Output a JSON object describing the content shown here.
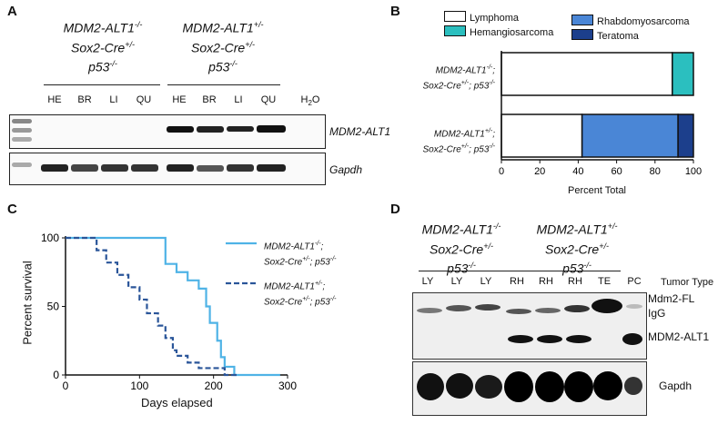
{
  "panelA": {
    "letter": "A",
    "group1": {
      "l1": "MDM2-ALT1",
      "l1sup": "-/-",
      "l2": "Sox2-Cre",
      "l2sup": "+/-",
      "l3": "p53",
      "l3sup": "-/-"
    },
    "group2": {
      "l1": "MDM2-ALT1",
      "l1sup": "+/-",
      "l2": "Sox2-Cre",
      "l2sup": "+/-",
      "l3": "p53",
      "l3sup": "-/-"
    },
    "lanes": [
      "HE",
      "BR",
      "LI",
      "QU",
      "HE",
      "BR",
      "LI",
      "QU"
    ],
    "water": "H",
    "water_sub": "2",
    "water_end": "O",
    "gel_labels": [
      "MDM2-ALT1",
      "Gapdh"
    ]
  },
  "panelB": {
    "letter": "B",
    "legend": [
      "Lymphoma",
      "Hemangiosarcoma",
      "Rhabdomyosarcoma",
      "Teratoma"
    ],
    "rows": [
      {
        "l1": "MDM2-ALT1",
        "l1sup": "-/-",
        "l1end": ";",
        "l2": "Sox2-Cre",
        "l2sup": "+/-",
        "l2mid": "; p53",
        "l2sup2": "-/-"
      },
      {
        "l1": "MDM2-ALT1",
        "l1sup": "+/-",
        "l1end": ";",
        "l2": "Sox2-Cre",
        "l2sup": "+/-",
        "l2mid": "; p53",
        "l2sup2": "-/-"
      }
    ],
    "xlabel": "Percent Total"
  },
  "panelC": {
    "letter": "C",
    "ylabel": "Percent survival",
    "xlabel": "Days elapsed",
    "legend": [
      {
        "l1": "MDM2-ALT1",
        "l1sup": "-/-",
        "l1end": ";",
        "l2": "Sox2-Cre",
        "l2sup": "+/-",
        "l2mid": "; p53",
        "l2sup2": "-/-"
      },
      {
        "l1": "MDM2-ALT1",
        "l1sup": "+/-",
        "l1end": ";",
        "l2": "Sox2-Cre",
        "l2sup": "+/-",
        "l2mid": "; p53",
        "l2sup2": "-/-"
      }
    ]
  },
  "panelD": {
    "letter": "D",
    "group1": {
      "l1": "MDM2-ALT1",
      "l1sup": "-/-",
      "l2": "Sox2-Cre",
      "l2sup": "+/-",
      "l3": "p53",
      "l3sup": "-/-"
    },
    "group2": {
      "l1": "MDM2-ALT1",
      "l1sup": "+/-",
      "l2": "Sox2-Cre",
      "l2sup": "+/-",
      "l3": "p53",
      "l3sup": "-/-"
    },
    "lanes": [
      "LY",
      "LY",
      "LY",
      "RH",
      "RH",
      "RH",
      "TE",
      "PC"
    ],
    "tumor_type": "Tumor Type",
    "blot_labels": [
      "Mdm2-FL",
      "IgG",
      "MDM2-ALT1",
      "Gapdh"
    ]
  },
  "chart_data": [
    {
      "type": "bar",
      "orientation": "horizontal",
      "stacked": true,
      "categories": [
        "MDM2-ALT1-/-; Sox2-Cre+/-; p53-/-",
        "MDM2-ALT1+/-; Sox2-Cre+/-; p53-/-"
      ],
      "series": [
        {
          "name": "Lymphoma",
          "values": [
            89,
            42
          ],
          "color": "#ffffff"
        },
        {
          "name": "Hemangiosarcoma",
          "values": [
            11,
            0
          ],
          "color": "#2bbfbf"
        },
        {
          "name": "Rhabdomyosarcoma",
          "values": [
            0,
            50
          ],
          "color": "#4a86d6"
        },
        {
          "name": "Teratoma",
          "values": [
            0,
            8
          ],
          "color": "#1c3f8c"
        }
      ],
      "xlim": [
        0,
        100
      ],
      "xticks": [
        0,
        20,
        40,
        60,
        80,
        100
      ],
      "xlabel": "Percent Total",
      "legend_position": "top"
    },
    {
      "type": "line",
      "step": true,
      "xlabel": "Days elapsed",
      "ylabel": "Percent survival",
      "xlim": [
        0,
        300
      ],
      "ylim": [
        0,
        100
      ],
      "xticks": [
        0,
        100,
        200,
        300
      ],
      "yticks": [
        0,
        50,
        100
      ],
      "series": [
        {
          "name": "MDM2-ALT1-/-; Sox2-Cre+/-; p53-/-",
          "color": "#4fb3e6",
          "dash": false,
          "x": [
            0,
            135,
            150,
            165,
            180,
            190,
            195,
            205,
            210,
            215,
            228,
            290
          ],
          "y": [
            100,
            81,
            75,
            69,
            63,
            50,
            38,
            25,
            13,
            6,
            0,
            0
          ]
        },
        {
          "name": "MDM2-ALT1+/-; Sox2-Cre+/-; p53-/-",
          "color": "#2a5599",
          "dash": true,
          "x": [
            0,
            42,
            55,
            70,
            85,
            100,
            110,
            125,
            135,
            145,
            150,
            165,
            180,
            215,
            232
          ],
          "y": [
            100,
            91,
            82,
            73,
            64,
            55,
            45,
            36,
            27,
            18,
            14,
            9,
            5,
            0,
            0
          ]
        }
      ],
      "legend_position": "right"
    }
  ]
}
